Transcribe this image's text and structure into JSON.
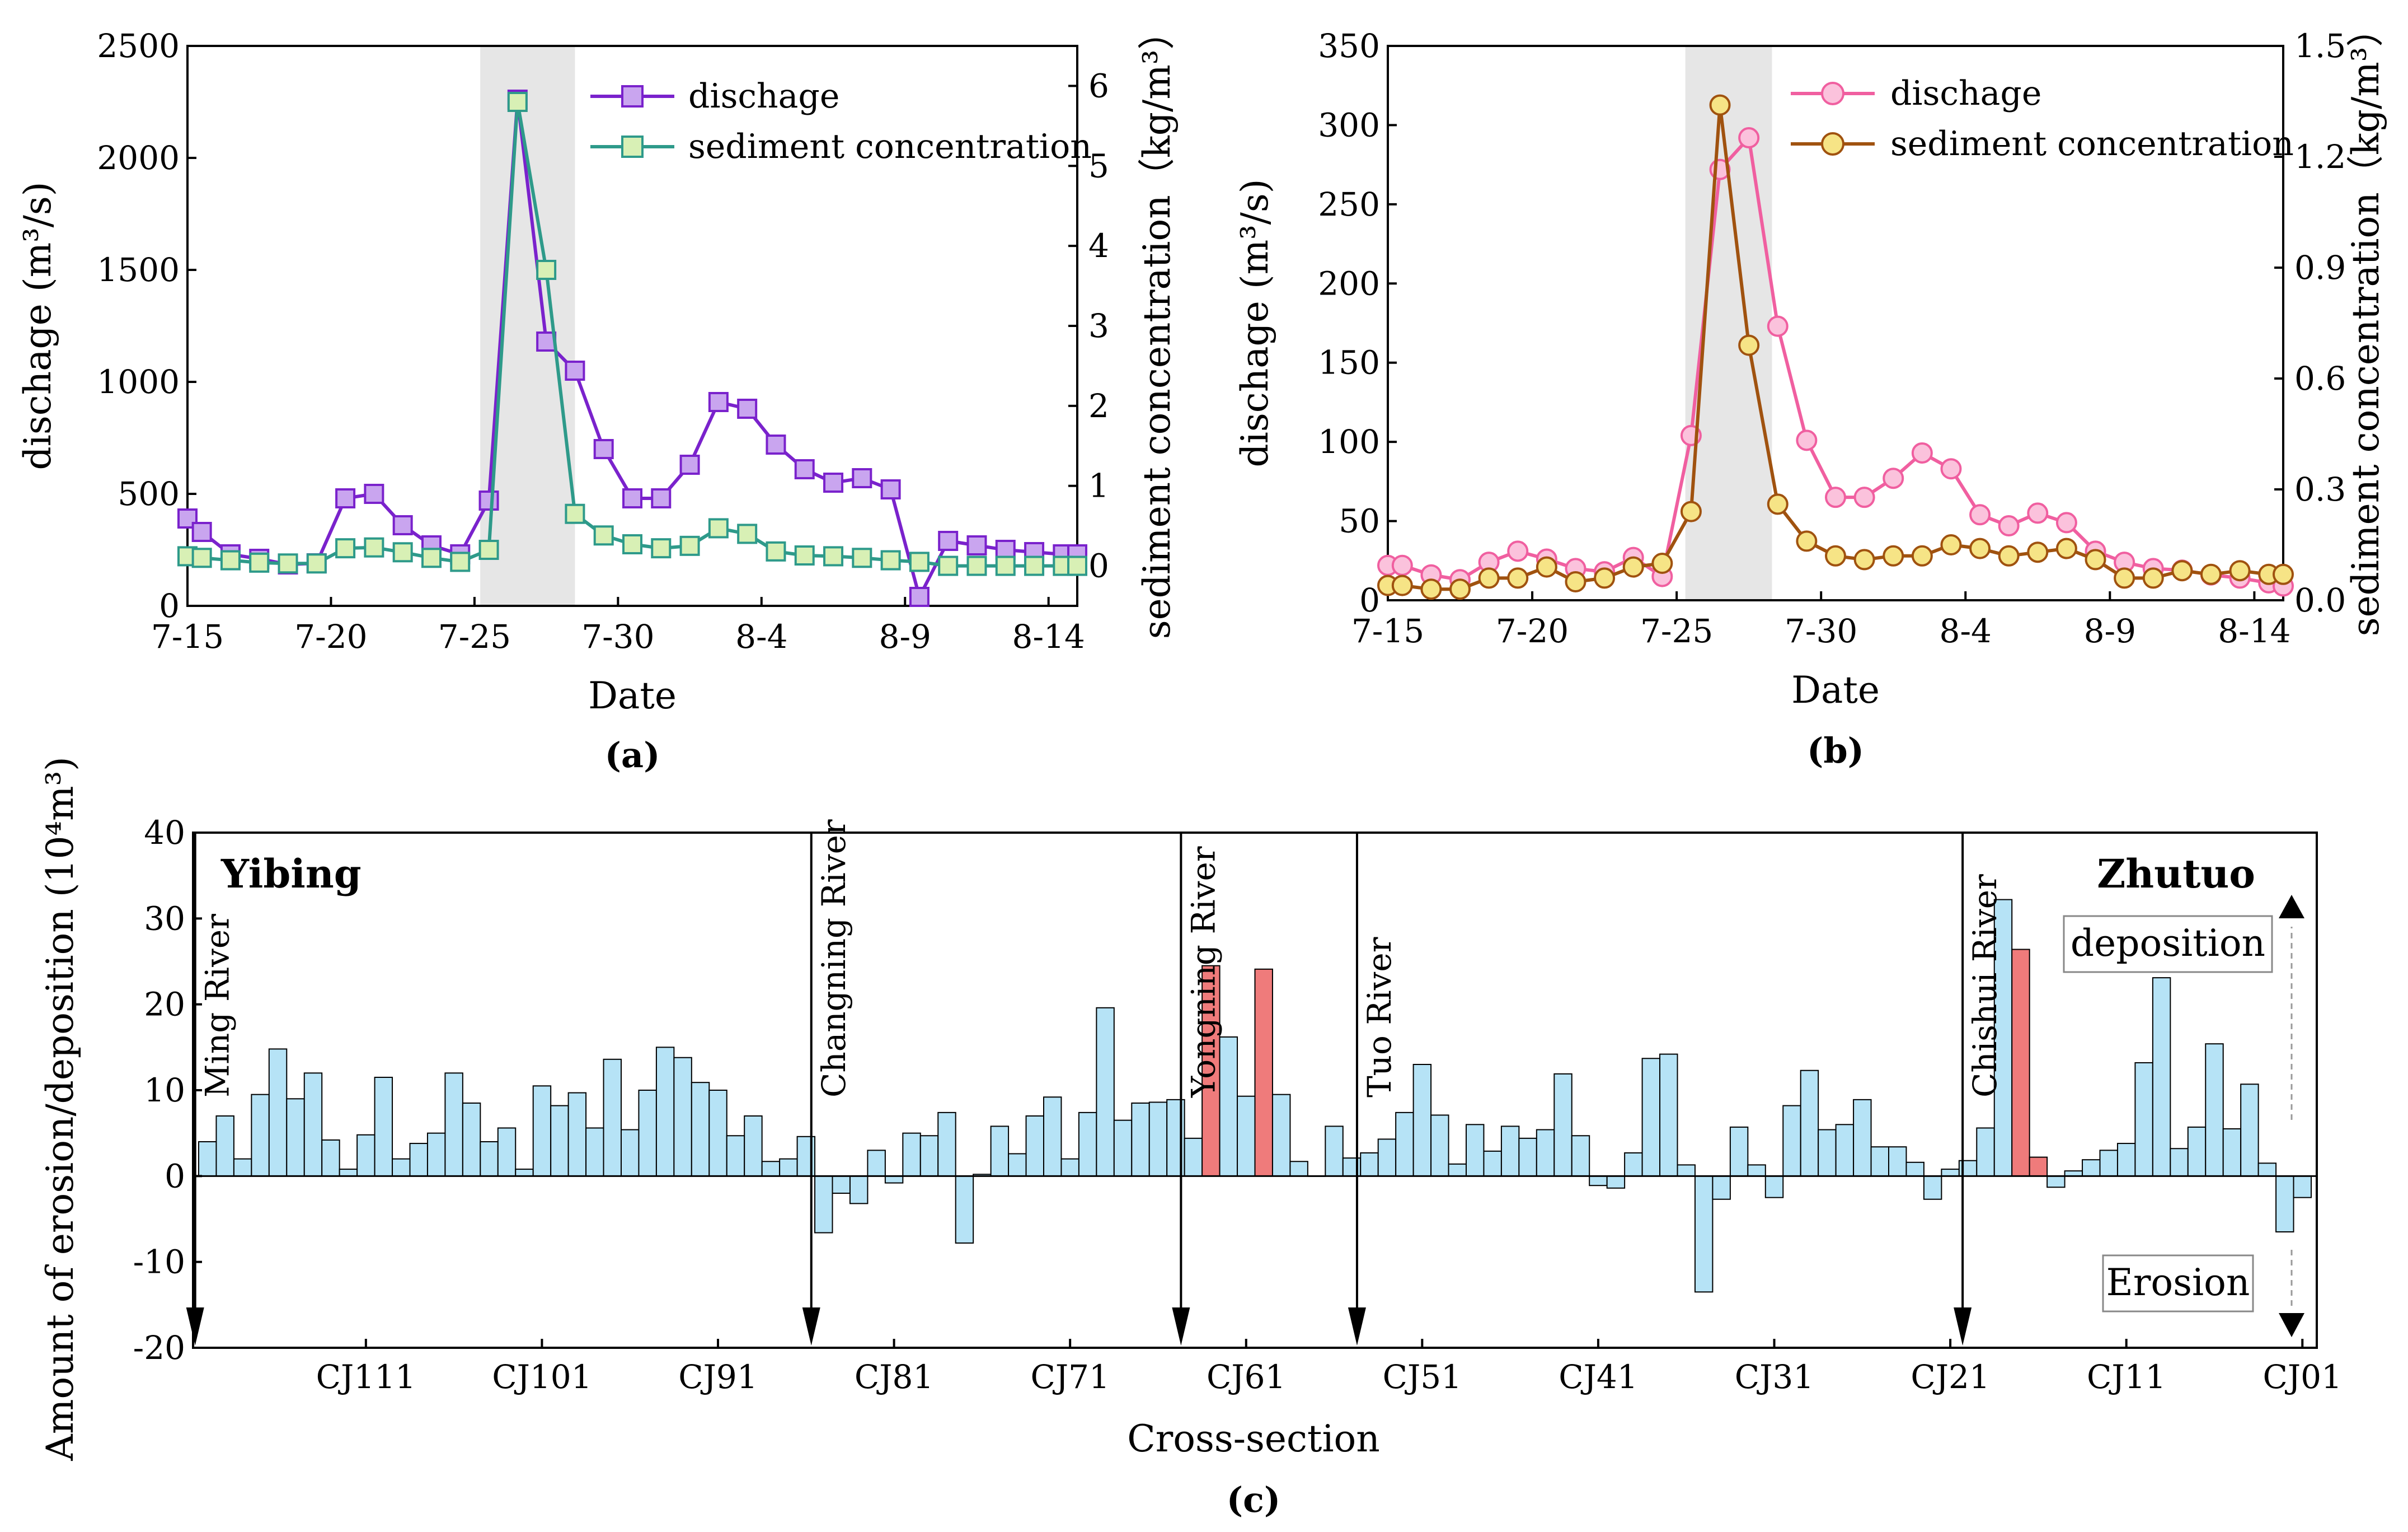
{
  "colors": {
    "purple": "#7a22cc",
    "purple_fill": "#c9a5ef",
    "teal": "#2e9a8a",
    "teal_fill": "#d8f0b5",
    "pink": "#f05fa0",
    "pink_fill": "#fbc2dc",
    "brown": "#a0520f",
    "yellow_fill": "#f6e486",
    "bar_blue": "#b6e3f6",
    "bar_red": "#ef7b7b",
    "shade": "#e6e6e6"
  },
  "chart_data": [
    {
      "id": "a",
      "type": "line",
      "panel_label": "(a)",
      "xlabel": "Date",
      "ylabel": "dischage (m³/s)",
      "y2label": "sediment concentration（kg/m³）",
      "x_ticks": [
        {
          "x": 0,
          "label": "7-15"
        },
        {
          "x": 5,
          "label": "7-20"
        },
        {
          "x": 10,
          "label": "7-25"
        },
        {
          "x": 15,
          "label": "7-30"
        },
        {
          "x": 20,
          "label": "8-4"
        },
        {
          "x": 25,
          "label": "8-9"
        },
        {
          "x": 30,
          "label": "8-14"
        }
      ],
      "xlim": [
        0,
        31
      ],
      "ylim": [
        0,
        2500
      ],
      "y_ticks": [
        0,
        500,
        1000,
        1500,
        2000,
        2500
      ],
      "y2lim": [
        -0.5,
        6.5
      ],
      "y2_ticks": [
        0,
        1,
        2,
        3,
        4,
        5,
        6
      ],
      "highlight": [
        10.2,
        13.5
      ],
      "series": [
        {
          "name": "dischage",
          "axis": "left",
          "marker": "square",
          "color": "purple",
          "fill": "purple_fill",
          "x": [
            0,
            0.5,
            1.5,
            2.5,
            3.5,
            4.5,
            5.5,
            6.5,
            7.5,
            8.5,
            9.5,
            10.5,
            11.5,
            12.5,
            13.5,
            14.5,
            15.5,
            16.5,
            17.5,
            18.5,
            19.5,
            20.5,
            21.5,
            22.5,
            23.5,
            24.5,
            25.5,
            26.5,
            27.5,
            28.5,
            29.5,
            30.5,
            31
          ],
          "values": [
            390,
            330,
            230,
            210,
            185,
            190,
            480,
            500,
            360,
            270,
            230,
            470,
            2260,
            1180,
            1050,
            700,
            480,
            480,
            630,
            910,
            880,
            720,
            610,
            550,
            570,
            520,
            40,
            290,
            270,
            250,
            240,
            230,
            230
          ]
        },
        {
          "name": "sediment concentration",
          "axis": "right",
          "marker": "square",
          "color": "teal",
          "fill": "teal_fill",
          "x": [
            0,
            0.5,
            1.5,
            2.5,
            3.5,
            4.5,
            5.5,
            6.5,
            7.5,
            8.5,
            9.5,
            10.5,
            11.5,
            12.5,
            13.5,
            14.5,
            15.5,
            16.5,
            17.5,
            18.5,
            19.5,
            20.5,
            21.5,
            22.5,
            23.5,
            24.5,
            25.5,
            26.5,
            27.5,
            28.5,
            29.5,
            30.5,
            31
          ],
          "values": [
            0.12,
            0.1,
            0.07,
            0.04,
            0.03,
            0.03,
            0.22,
            0.23,
            0.17,
            0.1,
            0.05,
            0.2,
            5.8,
            3.7,
            0.65,
            0.38,
            0.27,
            0.22,
            0.25,
            0.47,
            0.4,
            0.18,
            0.13,
            0.12,
            0.1,
            0.07,
            0.05,
            0.0,
            0.0,
            0.0,
            0.0,
            0.0,
            0.0
          ]
        }
      ]
    },
    {
      "id": "b",
      "type": "line",
      "panel_label": "(b)",
      "xlabel": "Date",
      "ylabel": "dischage (m³/s)",
      "y2label": "sediment concentration（kg/m³）",
      "x_ticks": [
        {
          "x": 0,
          "label": "7-15"
        },
        {
          "x": 5,
          "label": "7-20"
        },
        {
          "x": 10,
          "label": "7-25"
        },
        {
          "x": 15,
          "label": "7-30"
        },
        {
          "x": 20,
          "label": "8-4"
        },
        {
          "x": 25,
          "label": "8-9"
        },
        {
          "x": 30,
          "label": "8-14"
        }
      ],
      "xlim": [
        0,
        31
      ],
      "ylim": [
        0,
        350
      ],
      "y_ticks": [
        0,
        50,
        100,
        150,
        200,
        250,
        300,
        350
      ],
      "y2lim": [
        0,
        1.5
      ],
      "y2_ticks": [
        0.0,
        0.3,
        0.6,
        0.9,
        1.2,
        1.5
      ],
      "highlight": [
        10.3,
        13.3
      ],
      "series": [
        {
          "name": "dischage",
          "axis": "left",
          "marker": "circle",
          "color": "pink",
          "fill": "pink_fill",
          "x": [
            0,
            0.5,
            1.5,
            2.5,
            3.5,
            4.5,
            5.5,
            6.5,
            7.5,
            8.5,
            9.5,
            10.5,
            11.5,
            12.5,
            13.5,
            14.5,
            15.5,
            16.5,
            17.5,
            18.5,
            19.5,
            20.5,
            21.5,
            22.5,
            23.5,
            24.5,
            25.5,
            26.5,
            27.5,
            28.5,
            29.5,
            30.5,
            31
          ],
          "values": [
            22,
            22,
            16,
            13,
            24,
            31,
            26,
            20,
            18,
            27,
            15,
            104,
            272,
            292,
            173,
            101,
            65,
            65,
            77,
            93,
            83,
            54,
            47,
            55,
            49,
            31,
            24,
            20,
            19,
            16,
            14,
            11,
            9
          ]
        },
        {
          "name": "sediment concentration",
          "axis": "right",
          "marker": "circle",
          "color": "brown",
          "fill": "yellow_fill",
          "x": [
            0,
            0.5,
            1.5,
            2.5,
            3.5,
            4.5,
            5.5,
            6.5,
            7.5,
            8.5,
            9.5,
            10.5,
            11.5,
            12.5,
            13.5,
            14.5,
            15.5,
            16.5,
            17.5,
            18.5,
            19.5,
            20.5,
            21.5,
            22.5,
            23.5,
            24.5,
            25.5,
            26.5,
            27.5,
            28.5,
            29.5,
            30.5,
            31
          ],
          "values": [
            0.04,
            0.04,
            0.03,
            0.03,
            0.06,
            0.06,
            0.09,
            0.05,
            0.06,
            0.09,
            0.1,
            0.24,
            1.34,
            0.69,
            0.26,
            0.16,
            0.12,
            0.11,
            0.12,
            0.12,
            0.15,
            0.14,
            0.12,
            0.13,
            0.14,
            0.11,
            0.06,
            0.06,
            0.08,
            0.07,
            0.08,
            0.07,
            0.07
          ]
        }
      ]
    },
    {
      "id": "c",
      "type": "bar",
      "panel_label": "(c)",
      "xlabel": "Cross-section",
      "ylabel": "Amount of erosion/deposition (10⁴m³)",
      "ylim": [
        -20,
        40
      ],
      "y_ticks": [
        -20,
        -10,
        0,
        10,
        20,
        30,
        40
      ],
      "x_ticks": [
        {
          "index": 9,
          "label": "CJ111"
        },
        {
          "index": 19,
          "label": "CJ101"
        },
        {
          "index": 29,
          "label": "CJ91"
        },
        {
          "index": 39,
          "label": "CJ81"
        },
        {
          "index": 49,
          "label": "CJ71"
        },
        {
          "index": 59,
          "label": "CJ61"
        },
        {
          "index": 69,
          "label": "CJ51"
        },
        {
          "index": 79,
          "label": "CJ41"
        },
        {
          "index": 89,
          "label": "CJ31"
        },
        {
          "index": 99,
          "label": "CJ21"
        },
        {
          "index": 109,
          "label": "CJ11"
        },
        {
          "index": 119,
          "label": "CJ01"
        }
      ],
      "values": [
        4,
        7,
        2,
        9.5,
        14.8,
        9,
        12,
        4.2,
        0.8,
        4.8,
        11.5,
        2,
        3.8,
        5,
        12,
        8.5,
        4,
        5.6,
        0.8,
        10.5,
        8.2,
        9.7,
        5.6,
        13.6,
        5.4,
        10,
        15,
        13.8,
        10.9,
        10,
        4.7,
        7,
        1.7,
        2,
        4.6,
        -6.6,
        -2,
        -3.2,
        3,
        -0.8,
        5,
        4.7,
        7.4,
        -7.8,
        0.2,
        5.8,
        2.6,
        7,
        9.2,
        2,
        7.4,
        19.6,
        6.5,
        8.5,
        8.6,
        8.9,
        4.4,
        24.5,
        16.2,
        9.3,
        24.1,
        9.5,
        1.7,
        0,
        5.8,
        2.1,
        2.7,
        4.3,
        7.4,
        13,
        7.1,
        1.4,
        6,
        2.9,
        5.8,
        4.4,
        5.4,
        11.9,
        4.7,
        -1.1,
        -1.4,
        2.7,
        13.7,
        14.2,
        1.3,
        -13.5,
        -2.7,
        5.7,
        1.3,
        -2.5,
        8.2,
        12.3,
        5.4,
        6,
        8.9,
        3.4,
        3.4,
        1.6,
        -2.7,
        0.8,
        1.8,
        5.6,
        32.2,
        26.4,
        2.2,
        -1.3,
        0.6,
        1.9,
        3,
        3.8,
        13.2,
        23.1,
        3.2,
        5.7,
        15.4,
        5.5,
        10.7,
        1.5,
        -6.5,
        -2.5
      ],
      "red_indices": [
        57,
        60,
        103,
        104
      ],
      "dividers": [
        {
          "index": -0.2,
          "label": "Ming River"
        },
        {
          "index": 34.8,
          "label": "Changning River"
        },
        {
          "index": 55.8,
          "label": "Yongning River"
        },
        {
          "index": 65.8,
          "label": "Tuo River"
        },
        {
          "index": 100.2,
          "label": "Chishui River"
        }
      ],
      "annotations": {
        "start": "Yibing",
        "end": "Zhutuo",
        "deposition": "deposition",
        "erosion": "Erosion"
      }
    }
  ]
}
